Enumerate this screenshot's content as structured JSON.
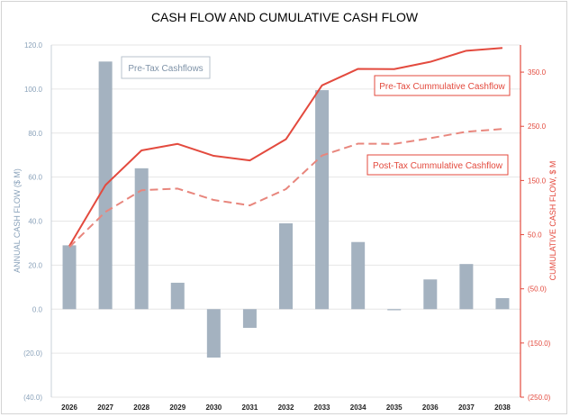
{
  "chart_data": {
    "type": "bar+line",
    "title": "CASH FLOW AND CUMULATIVE CASH FLOW",
    "categories": [
      "2026",
      "2027",
      "2028",
      "2029",
      "2030",
      "2031",
      "2032",
      "2033",
      "2034",
      "2035",
      "2036",
      "2037",
      "2038"
    ],
    "bar_series": {
      "name": "Pre-Tax Cashflows",
      "values": [
        29,
        112.5,
        64,
        12,
        -22,
        -8.5,
        39,
        99.5,
        30.5,
        -0.5,
        13.5,
        20.5,
        5
      ],
      "color": "#a4b2c0"
    },
    "line_series": [
      {
        "name": "Pre-Tax Cummulative Cashflow",
        "values": [
          29,
          141.5,
          205.5,
          217.5,
          195.5,
          187,
          226,
          325.5,
          356,
          355.5,
          369,
          389.5,
          394.5
        ],
        "color": "#e34a3e",
        "style": "solid"
      },
      {
        "name": "Post-Tax Cummulative Cashflow",
        "values": [
          27,
          92,
          132,
          135,
          114,
          104,
          134,
          196,
          218,
          217.5,
          228,
          240,
          245
        ],
        "color": "#e8867d",
        "style": "dashed"
      }
    ],
    "left_axis": {
      "label": "ANNUAL CASH FLOW ($ M)",
      "ylim": [
        -40,
        120
      ],
      "ticks": [
        120,
        100,
        80,
        60,
        40,
        20,
        0,
        -20,
        -40
      ],
      "tick_labels": [
        "120.0",
        "100.0",
        "80.0",
        "60.0",
        "40.0",
        "20.0",
        "0.0",
        "(20.0)",
        "(40.0)"
      ]
    },
    "right_axis": {
      "label": "CUMULATIVE CASH FLOW, $ M",
      "ylim": [
        -250,
        400
      ],
      "ticks": [
        350,
        250,
        150,
        50,
        -50,
        -150,
        -250
      ],
      "tick_labels": [
        "350.0",
        "250.0",
        "150.0",
        "50.0",
        "(50.0)",
        "(150.0)",
        "(250.0)"
      ]
    },
    "grid": true
  }
}
